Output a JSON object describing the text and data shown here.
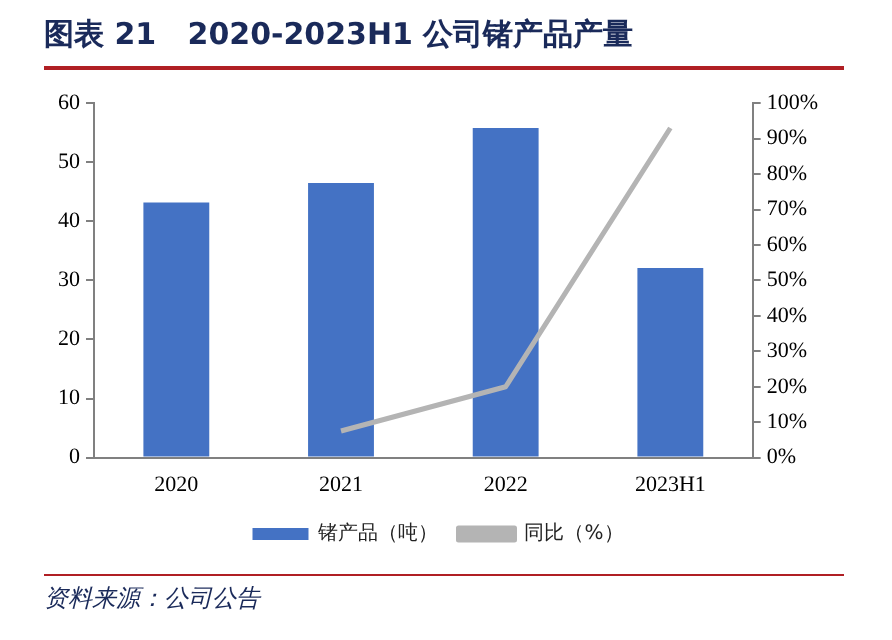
{
  "chart_data": {
    "type": "bar",
    "title": "图表 21   2020-2023H1 公司锗产品产量",
    "categories": [
      "2020",
      "2021",
      "2022",
      "2023H1"
    ],
    "series": [
      {
        "name": "锗产品（吨）",
        "color": "#4472c4",
        "values": [
          43.2,
          46.5,
          55.8,
          32.1
        ]
      },
      {
        "name": "同比（%）",
        "type": "line",
        "axis": "y2",
        "color": "#b4b4b4",
        "values": [
          null,
          7.5,
          20,
          93
        ]
      }
    ],
    "ylim": [
      0,
      60
    ],
    "yticks": [
      0,
      10,
      20,
      30,
      40,
      50,
      60
    ],
    "y2lim": [
      0,
      100
    ],
    "y2ticks": [
      {
        "value": 0,
        "label": "0%"
      },
      {
        "value": 10,
        "label": "10%"
      },
      {
        "value": 20,
        "label": "20%"
      },
      {
        "value": 30,
        "label": "30%"
      },
      {
        "value": 40,
        "label": "40%"
      },
      {
        "value": 50,
        "label": "50%"
      },
      {
        "value": 60,
        "label": "60%"
      },
      {
        "value": 70,
        "label": "70%"
      },
      {
        "value": 80,
        "label": "80%"
      },
      {
        "value": 90,
        "label": "90%"
      },
      {
        "value": 100,
        "label": "100%"
      }
    ],
    "grid": false,
    "legend": "bottom",
    "marker": "none",
    "annotations": [
      "资料来源：公司公告"
    ]
  }
}
